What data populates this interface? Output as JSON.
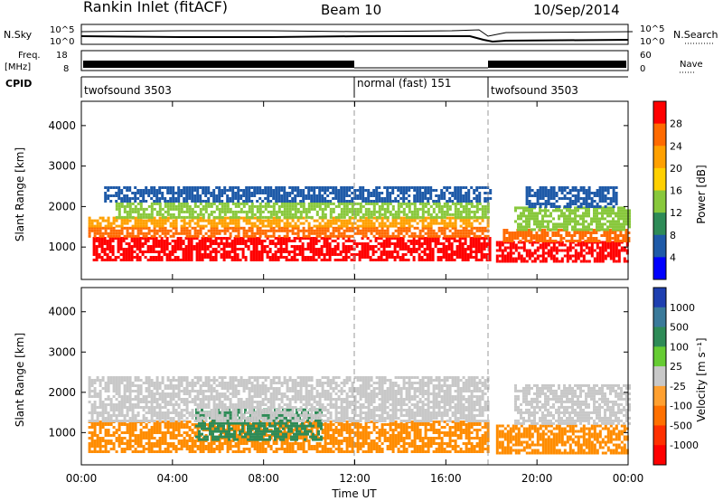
{
  "header": {
    "title": "Rankin Inlet (fitACF)",
    "beam": "Beam 10",
    "date": "10/Sep/2014"
  },
  "noise_panel": {
    "left_label": "N.Sky",
    "right_label": "N.Search",
    "left_ticks": [
      "10^5",
      "10^0"
    ],
    "right_ticks": [
      "10^5",
      "10^0"
    ]
  },
  "freq_panel": {
    "left_label": "Freq.",
    "left_unit": "[MHz]",
    "left_ticks": [
      "18",
      "8"
    ],
    "right_label": "Nave",
    "right_ticks": [
      "60",
      "0"
    ]
  },
  "cpid_panel": {
    "label": "CPID",
    "segments": [
      {
        "name": "twofsound 3503",
        "start_h": 0,
        "end_h": 12
      },
      {
        "name": "normal (fast) 151",
        "start_h": 12,
        "end_h": 18
      },
      {
        "name": "twofsound 3503",
        "start_h": 18,
        "end_h": 24
      }
    ]
  },
  "time_axis": {
    "xlabel": "Time UT",
    "tick_labels": [
      "00:00",
      "04:00",
      "08:00",
      "12:00",
      "16:00",
      "20:00",
      "00:00"
    ],
    "tick_hours": [
      0,
      4,
      8,
      12,
      16,
      20,
      24
    ],
    "range_h": [
      0,
      24
    ]
  },
  "chart_data": [
    {
      "type": "heatmap",
      "xlabel": "",
      "ylabel": "Slant Range [km]",
      "ylim": [
        200,
        4600
      ],
      "ytick_labels": [
        "1000",
        "2000",
        "3000",
        "4000"
      ],
      "ytick_values": [
        1000,
        2000,
        3000,
        4000
      ],
      "xlim": [
        0,
        24
      ],
      "colorbar": {
        "label": "Power [dB]",
        "tick_labels": [
          "28",
          "24",
          "20",
          "16",
          "12",
          "8",
          "4"
        ],
        "colors": [
          "#ff0000",
          "#ff6a00",
          "#ffa000",
          "#ffd000",
          "#88c83c",
          "#2e8b57",
          "#1e5aa8",
          "#0000ff"
        ]
      },
      "layers": [
        {
          "color": "#ff0000",
          "h0": 0.5,
          "h1": 17.9,
          "lo": 650,
          "hi": 1250
        },
        {
          "color": "#ff0000",
          "h0": 18.2,
          "h1": 24,
          "lo": 650,
          "hi": 1150
        },
        {
          "color": "#ff6a00",
          "h0": 0.3,
          "h1": 17.9,
          "lo": 1250,
          "hi": 1500
        },
        {
          "color": "#ffa000",
          "h0": 0.3,
          "h1": 17.9,
          "lo": 1500,
          "hi": 1750
        },
        {
          "color": "#88c83c",
          "h0": 1.5,
          "h1": 17.9,
          "lo": 1750,
          "hi": 2100
        },
        {
          "color": "#1e5aa8",
          "h0": 1.0,
          "h1": 17.9,
          "lo": 2100,
          "hi": 2500
        },
        {
          "color": "#ff6a00",
          "h0": 18.5,
          "h1": 24,
          "lo": 1150,
          "hi": 1450
        },
        {
          "color": "#88c83c",
          "h0": 19.0,
          "h1": 24,
          "lo": 1450,
          "hi": 2000
        },
        {
          "color": "#1e5aa8",
          "h0": 19.5,
          "h1": 23.5,
          "lo": 2000,
          "hi": 2500
        }
      ]
    },
    {
      "type": "heatmap",
      "xlabel": "Time UT",
      "ylabel": "Slant Range [km]",
      "ylim": [
        200,
        4600
      ],
      "ytick_labels": [
        "1000",
        "2000",
        "3000",
        "4000"
      ],
      "ytick_values": [
        1000,
        2000,
        3000,
        4000
      ],
      "xlim": [
        0,
        24
      ],
      "colorbar": {
        "label": "Velocity [m s⁻¹]",
        "tick_labels": [
          "1000",
          "500",
          "100",
          "25",
          "-25",
          "-100",
          "-500",
          "-1000"
        ],
        "colors": [
          "#1e3fb0",
          "#3a7a9a",
          "#2e8b57",
          "#66cc33",
          "#c8c8c8",
          "#ffa030",
          "#ff7000",
          "#ff3000",
          "#ff0000"
        ]
      },
      "layers": [
        {
          "color": "#ff8c00",
          "h0": 0.3,
          "h1": 17.9,
          "lo": 500,
          "hi": 1300
        },
        {
          "color": "#ff8c00",
          "h0": 18.2,
          "h1": 24,
          "lo": 500,
          "hi": 1200
        },
        {
          "color": "#2e8b57",
          "h0": 5.0,
          "h1": 10.5,
          "lo": 800,
          "hi": 1600
        },
        {
          "color": "#c8c8c8",
          "h0": 0.3,
          "h1": 17.9,
          "lo": 1300,
          "hi": 2400
        },
        {
          "color": "#c8c8c8",
          "h0": 19.0,
          "h1": 24,
          "lo": 1200,
          "hi": 2200
        }
      ]
    }
  ]
}
